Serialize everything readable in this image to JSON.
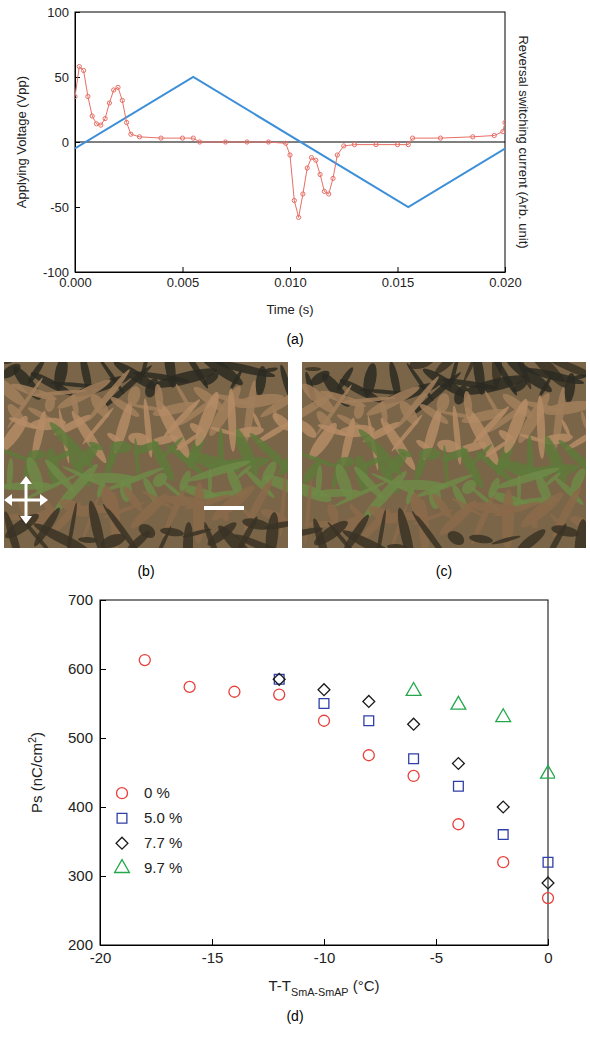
{
  "chart_data": [
    {
      "type": "line",
      "panel_label": "(a)",
      "x_label": "Time (s)",
      "y_label": "Applying Voltage (Vpp)",
      "y2_label": "Reversal switching current (Arb. unit)",
      "xlim": [
        0,
        0.02
      ],
      "xticks": [
        {
          "value": 0,
          "label": "0.000"
        },
        {
          "value": 0.005,
          "label": "0.005"
        },
        {
          "value": 0.01,
          "label": "0.010"
        },
        {
          "value": 0.015,
          "label": "0.015"
        },
        {
          "value": 0.02,
          "label": "0.020"
        }
      ],
      "ylim": [
        -100,
        100
      ],
      "yticks": [
        -100,
        -50,
        0,
        50,
        100
      ],
      "hlines": [
        0
      ],
      "grid": false,
      "series": [
        {
          "color": "#3d8fd8",
          "marker": "none",
          "line_style": "solid",
          "x": [
            0,
            0.0055,
            0.0155,
            0.02
          ],
          "values": [
            -5,
            50,
            -50,
            -5
          ]
        },
        {
          "color": "#e86f66",
          "marker": "circle",
          "line_style": "solid",
          "x": [
            0,
            0.0002,
            0.0004,
            0.0006,
            0.0008,
            0.001,
            0.0012,
            0.0014,
            0.0016,
            0.0018,
            0.002,
            0.0022,
            0.0024,
            0.0026,
            0.003,
            0.004,
            0.005,
            0.0055,
            0.0058,
            0.007,
            0.008,
            0.009,
            0.0098,
            0.01,
            0.0102,
            0.0104,
            0.0106,
            0.0108,
            0.011,
            0.0112,
            0.0114,
            0.0116,
            0.0118,
            0.012,
            0.0122,
            0.0125,
            0.013,
            0.014,
            0.015,
            0.0155,
            0.0157,
            0.017,
            0.0185,
            0.0195,
            0.0199,
            0.02
          ],
          "values": [
            35,
            58,
            55,
            35,
            20,
            14,
            13,
            18,
            30,
            40,
            42,
            32,
            15,
            6,
            4,
            3,
            3,
            3,
            0,
            0,
            0,
            0,
            -1,
            -10,
            -45,
            -58,
            -40,
            -20,
            -12,
            -14,
            -25,
            -38,
            -40,
            -28,
            -10,
            -3,
            -2,
            -2,
            -2,
            -2,
            3,
            3,
            4,
            5,
            8,
            15
          ]
        }
      ]
    },
    {
      "type": "scatter",
      "panel_label": "(d)",
      "x_label": {
        "text": "T-T",
        "subscript": "SmA-SmAP",
        "suffix": " (°C)"
      },
      "y_label": {
        "text": "Ps (nC/cm",
        "superscript": "2",
        "suffix": ")"
      },
      "xlim": [
        -20,
        0
      ],
      "xticks": [
        -20,
        -15,
        -10,
        -5,
        0
      ],
      "ylim": [
        200,
        700
      ],
      "yticks": [
        200,
        300,
        400,
        500,
        600,
        700
      ],
      "grid": false,
      "legend": "center-left",
      "series": [
        {
          "name": "0 %",
          "color": "#e8403a",
          "marker": "circle",
          "x": [
            -18,
            -16,
            -14,
            -12,
            -10,
            -8,
            -6,
            -4,
            -2,
            0
          ],
          "values": [
            613,
            574,
            567,
            563,
            525,
            475,
            445,
            375,
            320,
            268
          ]
        },
        {
          "name": "5.0 %",
          "color": "#2f3fa8",
          "marker": "square",
          "x": [
            -12,
            -10,
            -8,
            -6,
            -4,
            -2,
            0
          ],
          "values": [
            585,
            550,
            525,
            470,
            430,
            360,
            320
          ]
        },
        {
          "name": "7.7 %",
          "color": "#1a1a1a",
          "marker": "diamond",
          "x": [
            -12,
            -10,
            -8,
            -6,
            -4,
            -2,
            0
          ],
          "values": [
            585,
            570,
            553,
            520,
            463,
            400,
            290
          ]
        },
        {
          "name": "9.7 %",
          "color": "#22a84a",
          "marker": "triangle",
          "x": [
            -6,
            -4,
            -2,
            0
          ],
          "values": [
            568,
            548,
            530,
            448
          ]
        }
      ]
    }
  ],
  "micrographs": [
    {
      "panel_label": "(b)"
    },
    {
      "panel_label": "(c)"
    }
  ]
}
